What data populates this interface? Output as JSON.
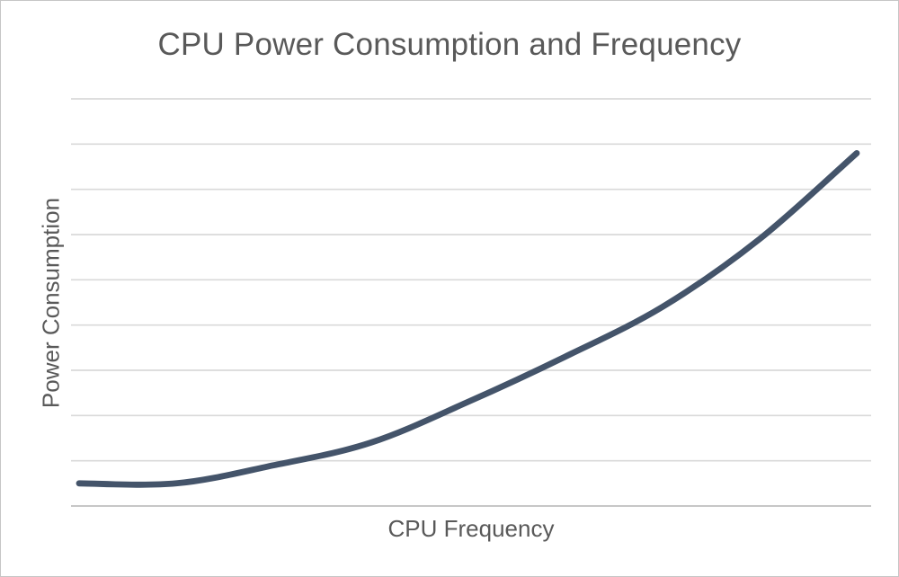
{
  "frame": {
    "background": "#FFFFFF",
    "border_color": "#C6C6C6"
  },
  "chart_data": {
    "type": "line",
    "title": "CPU Power Consumption and Frequency",
    "xlabel": "CPU Frequency",
    "ylabel": "Power Consumption",
    "x": [
      1,
      2,
      3,
      4,
      5,
      6,
      7,
      8,
      9
    ],
    "series": [
      {
        "name": "Power Consumption",
        "values": [
          0.5,
          0.5,
          0.9,
          1.4,
          2.3,
          3.3,
          4.4,
          5.9,
          7.8
        ],
        "color": "#44546A",
        "smooth": true,
        "stroke_width": 6.8
      }
    ],
    "xlim": [
      1,
      9
    ],
    "ylim": [
      0,
      9
    ],
    "y_gridline_interval": 1,
    "grid": "horizontal",
    "x_tick_labels": "none",
    "y_tick_labels": "none",
    "legend": "none",
    "colors": {
      "gridline": "#D9D9D9",
      "axis_line": "#BFBFBF",
      "text": "#595959",
      "background": "#FFFFFF"
    }
  }
}
